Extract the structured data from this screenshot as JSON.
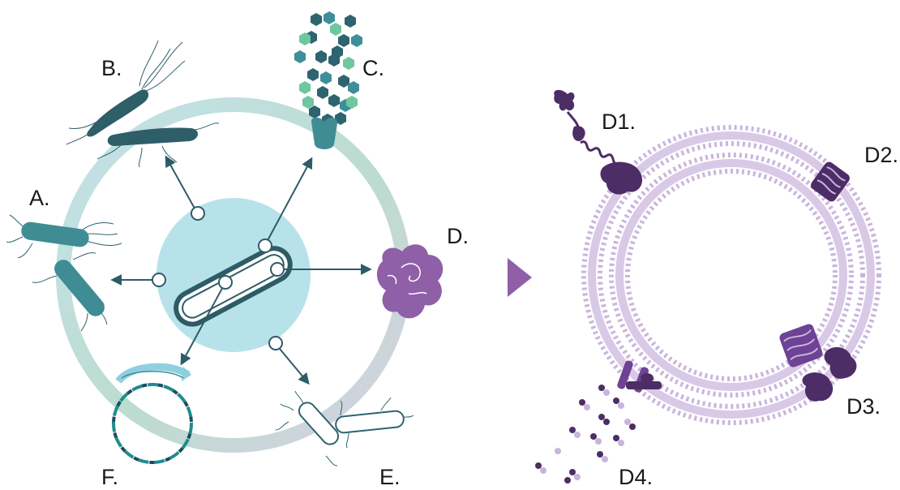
{
  "labels": {
    "a": "A.",
    "b": "B.",
    "c": "C.",
    "d": "D.",
    "e": "E.",
    "f": "F.",
    "d1": "D1.",
    "d2": "D2.",
    "d3": "D3.",
    "d4": "D4."
  },
  "colors": {
    "ring_blue": "#c4e2ea",
    "ring_green": "#bcdccf",
    "ring_lilac": "#d7d0e2",
    "center_disc": "#b8e2ea",
    "bacterium_teal": "#3f8c95",
    "bacterium_dark": "#2e5e68",
    "arrow": "#2d5c66",
    "hex_dark": "#2e6470",
    "hex_mid": "#3f8f9a",
    "hex_green": "#6ec79e",
    "protein_purple": "#8f5fa8",
    "membrane_lilac": "#c9b4dd",
    "protein_dark": "#4d2d66",
    "pointer_purple": "#8f5fa8",
    "dna_teal": "#1f8c90",
    "dna_dark": "#1e4d5a"
  }
}
